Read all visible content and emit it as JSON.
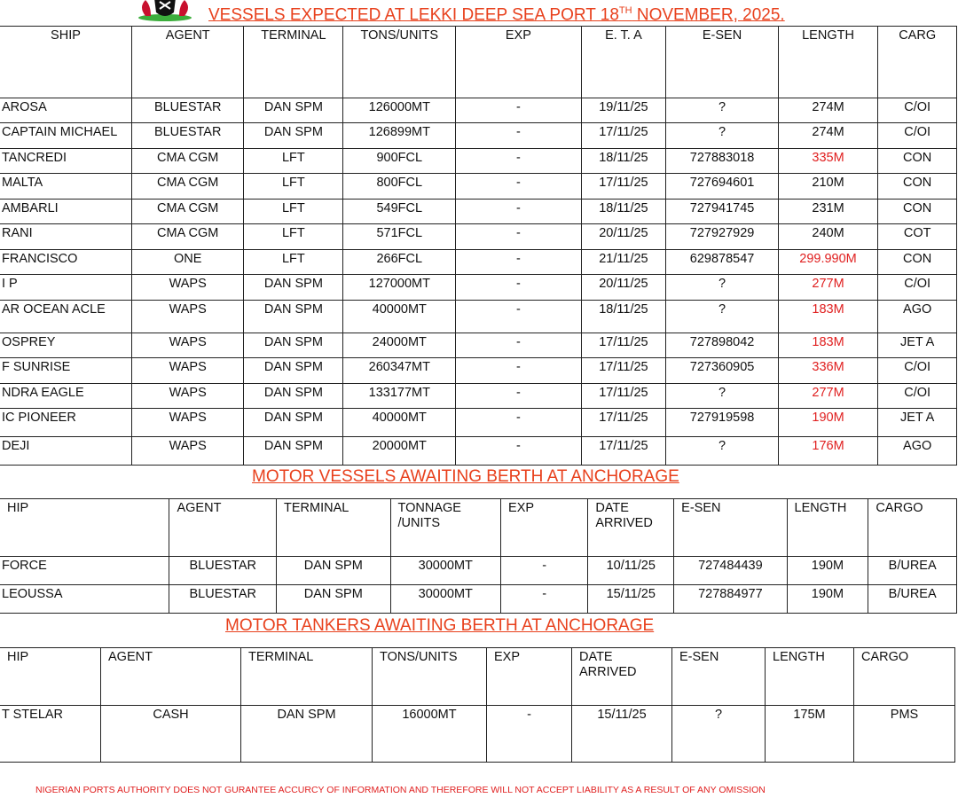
{
  "title": {
    "main": "VESSELS EXPECTED AT LEKKI DEEP SEA PORT 18",
    "sup": "TH",
    "rest": " NOVEMBER, 2025."
  },
  "logo": {
    "name": "nigerian-coat-of-arms"
  },
  "colors": {
    "title": "#e8401c",
    "highlight": "#e02020"
  },
  "expected": {
    "headers": [
      "SHIP",
      "AGENT",
      "TERMINAL",
      "TONS/UNITS",
      "EXP",
      "E. T. A",
      "E-SEN",
      "LENGTH",
      "CARG"
    ],
    "rows": [
      {
        "ship": "AROSA",
        "agent": "BLUESTAR",
        "terminal": "DAN SPM",
        "tons": "126000MT",
        "exp": "-",
        "eta": "19/11/25",
        "esen": "?",
        "length": "274M",
        "red": false,
        "cargo": "C/OI"
      },
      {
        "ship": "CAPTAIN MICHAEL",
        "agent": "BLUESTAR",
        "terminal": "DAN SPM",
        "tons": "126899MT",
        "exp": "-",
        "eta": "17/11/25",
        "esen": "?",
        "length": "274M",
        "red": false,
        "cargo": "C/OI"
      },
      {
        "ship": "TANCREDI",
        "agent": "CMA CGM",
        "terminal": "LFT",
        "tons": "900FCL",
        "exp": "-",
        "eta": "18/11/25",
        "esen": "727883018",
        "length": "335M",
        "red": true,
        "cargo": "CON"
      },
      {
        "ship": "MALTA",
        "agent": "CMA CGM",
        "terminal": "LFT",
        "tons": "800FCL",
        "exp": "-",
        "eta": "17/11/25",
        "esen": "727694601",
        "length": "210M",
        "red": false,
        "cargo": "CON"
      },
      {
        "ship": "AMBARLI",
        "agent": "CMA CGM",
        "terminal": "LFT",
        "tons": "549FCL",
        "exp": "-",
        "eta": "18/11/25",
        "esen": "727941745",
        "length": "231M",
        "red": false,
        "cargo": "CON"
      },
      {
        "ship": "RANI",
        "agent": "CMA CGM",
        "terminal": "LFT",
        "tons": "571FCL",
        "exp": "-",
        "eta": "20/11/25",
        "esen": "727927929",
        "length": "240M",
        "red": false,
        "cargo": "COT"
      },
      {
        "ship": " FRANCISCO",
        "agent": "ONE",
        "terminal": "LFT",
        "tons": "266FCL",
        "exp": "-",
        "eta": "21/11/25",
        "esen": "629878547",
        "length": "299.990M",
        "red": true,
        "cargo": "CON"
      },
      {
        "ship": "I P",
        "agent": "WAPS",
        "terminal": "DAN SPM",
        "tons": "127000MT",
        "exp": "-",
        "eta": "20/11/25",
        "esen": "?",
        "length": "277M",
        "red": true,
        "cargo": "C/OI"
      },
      {
        "ship": "AR OCEAN ACLE",
        "agent": "WAPS",
        "terminal": "DAN SPM",
        "tons": "40000MT",
        "exp": "-",
        "eta": "18/11/25",
        "esen": "?",
        "length": "183M",
        "red": true,
        "cargo": "AGO"
      },
      {
        "ship": "OSPREY",
        "agent": "WAPS",
        "terminal": "DAN SPM",
        "tons": "24000MT",
        "exp": "-",
        "eta": "17/11/25",
        "esen": "727898042",
        "length": "183M",
        "red": true,
        "cargo": "JET A"
      },
      {
        "ship": "F SUNRISE",
        "agent": "WAPS",
        "terminal": "DAN SPM",
        "tons": "260347MT",
        "exp": "-",
        "eta": "17/11/25",
        "esen": "727360905",
        "length": "336M",
        "red": true,
        "cargo": "C/OI"
      },
      {
        "ship": "NDRA EAGLE",
        "agent": "WAPS",
        "terminal": "DAN SPM",
        "tons": "133177MT",
        "exp": "-",
        "eta": "17/11/25",
        "esen": "?",
        "length": "277M",
        "red": true,
        "cargo": "C/OI"
      },
      {
        "ship": "IC PIONEER",
        "agent": "WAPS",
        "terminal": "DAN SPM",
        "tons": "40000MT",
        "exp": "-",
        "eta": "17/11/25",
        "esen": "727919598",
        "length": "190M",
        "red": true,
        "cargo": "JET A"
      },
      {
        "ship": "DEJI",
        "agent": "WAPS",
        "terminal": "DAN SPM",
        "tons": "20000MT",
        "exp": "-",
        "eta": "17/11/25",
        "esen": "?",
        "length": "176M",
        "red": true,
        "cargo": "AGO"
      }
    ]
  },
  "motor_vessels": {
    "title": "MOTOR VESSELS AWAITING BERTH AT ANCHORAGE",
    "headers": [
      "HIP",
      "AGENT",
      "TERMINAL",
      "TONNAGE /UNITS",
      "EXP",
      "DATE ARRIVED",
      "E-SEN",
      "LENGTH",
      "CARGO"
    ],
    "rows": [
      {
        "ship": " FORCE",
        "agent": "BLUESTAR",
        "terminal": "DAN SPM",
        "tons": "30000MT",
        "exp": "-",
        "date": "10/11/25",
        "esen": "727484439",
        "length": "190M",
        "cargo": "B/UREA"
      },
      {
        "ship": "LEOUSSA",
        "agent": "BLUESTAR",
        "terminal": "DAN SPM",
        "tons": "30000MT",
        "exp": "-",
        "date": "15/11/25",
        "esen": "727884977",
        "length": "190M",
        "cargo": "B/UREA"
      }
    ]
  },
  "motor_tankers": {
    "title": "MOTOR TANKERS AWAITING BERTH AT ANCHORAGE",
    "headers": [
      "HIP",
      "AGENT",
      "TERMINAL",
      "TONS/UNITS",
      "EXP",
      "DATE ARRIVED",
      "E-SEN",
      "LENGTH",
      "CARGO"
    ],
    "rows": [
      {
        "ship": "T STELAR",
        "agent": "CASH",
        "terminal": "DAN SPM",
        "tons": "16000MT",
        "exp": "-",
        "date": "15/11/25",
        "esen": "?",
        "length": "175M",
        "cargo": "PMS"
      }
    ]
  },
  "footer": "NIGERIAN PORTS AUTHORITY DOES NOT GURANTEE ACCURCY OF INFORMATION AND THEREFORE WILL NOT ACCEPT LIABILITY AS A RESULT OF ANY OMISSION"
}
